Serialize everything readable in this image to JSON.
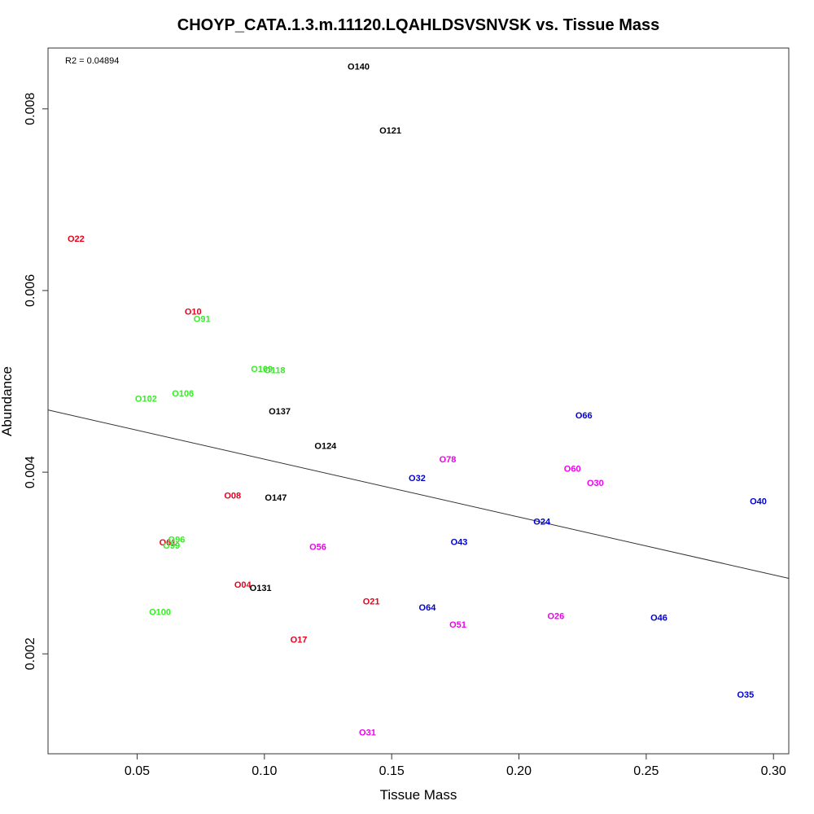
{
  "chart_data": {
    "type": "scatter",
    "title": "CHOYP_CATA.1.3.m.11120.LQAHLDSVSNVSK vs. Tissue Mass",
    "xlabel": "Tissue Mass",
    "ylabel": "Abundance",
    "xlim": [
      0.015,
      0.306
    ],
    "ylim": [
      0.0009,
      0.00867
    ],
    "xticks": [
      0.05,
      0.1,
      0.15,
      0.2,
      0.25,
      0.3
    ],
    "xtick_labels": [
      "0.05",
      "0.10",
      "0.15",
      "0.20",
      "0.25",
      "0.30"
    ],
    "yticks": [
      0.002,
      0.004,
      0.006,
      0.008
    ],
    "ytick_labels": [
      "0.002",
      "0.004",
      "0.006",
      "0.008"
    ],
    "annotation": "R2 = 0.04894",
    "grid": false,
    "colors": {
      "black": "#000000",
      "red": "#e8001c",
      "green": "#33ee22",
      "blue": "#0000cc",
      "magenta": "#ee00ee"
    },
    "regression": {
      "x": [
        0.015,
        0.306
      ],
      "y": [
        0.004685,
        0.002831
      ]
    },
    "points": [
      {
        "label": "O140",
        "x": 0.137,
        "y": 0.008468,
        "color": "black"
      },
      {
        "label": "O121",
        "x": 0.1495,
        "y": 0.007763,
        "color": "black"
      },
      {
        "label": "O137",
        "x": 0.106,
        "y": 0.004675,
        "color": "black"
      },
      {
        "label": "O124",
        "x": 0.124,
        "y": 0.004294,
        "color": "black"
      },
      {
        "label": "O147",
        "x": 0.1045,
        "y": 0.003724,
        "color": "black"
      },
      {
        "label": "O131",
        "x": 0.0985,
        "y": 0.002729,
        "color": "black"
      },
      {
        "label": "O22",
        "x": 0.026,
        "y": 0.006575,
        "color": "red"
      },
      {
        "label": "O10",
        "x": 0.072,
        "y": 0.005772,
        "color": "red"
      },
      {
        "label": "O08",
        "x": 0.0875,
        "y": 0.003745,
        "color": "red"
      },
      {
        "label": "O61",
        "x": 0.062,
        "y": 0.003228,
        "color": "red"
      },
      {
        "label": "O04",
        "x": 0.0915,
        "y": 0.002762,
        "color": "red"
      },
      {
        "label": "O21",
        "x": 0.142,
        "y": 0.002581,
        "color": "red"
      },
      {
        "label": "O17",
        "x": 0.1135,
        "y": 0.002161,
        "color": "red"
      },
      {
        "label": "O91",
        "x": 0.0755,
        "y": 0.005688,
        "color": "green"
      },
      {
        "label": "O109",
        "x": 0.099,
        "y": 0.005137,
        "color": "green"
      },
      {
        "label": "O118",
        "x": 0.104,
        "y": 0.005126,
        "color": "green"
      },
      {
        "label": "O106",
        "x": 0.068,
        "y": 0.004868,
        "color": "green"
      },
      {
        "label": "O102",
        "x": 0.0535,
        "y": 0.004811,
        "color": "green"
      },
      {
        "label": "O96",
        "x": 0.0655,
        "y": 0.003261,
        "color": "green"
      },
      {
        "label": "O99",
        "x": 0.0635,
        "y": 0.003195,
        "color": "green"
      },
      {
        "label": "O100",
        "x": 0.059,
        "y": 0.002465,
        "color": "green"
      },
      {
        "label": "O66",
        "x": 0.2255,
        "y": 0.004628,
        "color": "blue"
      },
      {
        "label": "O32",
        "x": 0.16,
        "y": 0.00394,
        "color": "blue"
      },
      {
        "label": "O40",
        "x": 0.294,
        "y": 0.003681,
        "color": "blue"
      },
      {
        "label": "O24",
        "x": 0.209,
        "y": 0.003459,
        "color": "blue"
      },
      {
        "label": "O43",
        "x": 0.1765,
        "y": 0.003234,
        "color": "blue"
      },
      {
        "label": "O64",
        "x": 0.164,
        "y": 0.002514,
        "color": "blue"
      },
      {
        "label": "O46",
        "x": 0.255,
        "y": 0.002399,
        "color": "blue"
      },
      {
        "label": "O35",
        "x": 0.289,
        "y": 0.001553,
        "color": "blue"
      },
      {
        "label": "O78",
        "x": 0.172,
        "y": 0.004146,
        "color": "magenta"
      },
      {
        "label": "O60",
        "x": 0.221,
        "y": 0.004043,
        "color": "magenta"
      },
      {
        "label": "O30",
        "x": 0.23,
        "y": 0.003883,
        "color": "magenta"
      },
      {
        "label": "O56",
        "x": 0.121,
        "y": 0.003179,
        "color": "magenta"
      },
      {
        "label": "O26",
        "x": 0.2145,
        "y": 0.00242,
        "color": "magenta"
      },
      {
        "label": "O51",
        "x": 0.176,
        "y": 0.002325,
        "color": "magenta"
      },
      {
        "label": "O31",
        "x": 0.1405,
        "y": 0.001137,
        "color": "magenta"
      }
    ]
  }
}
